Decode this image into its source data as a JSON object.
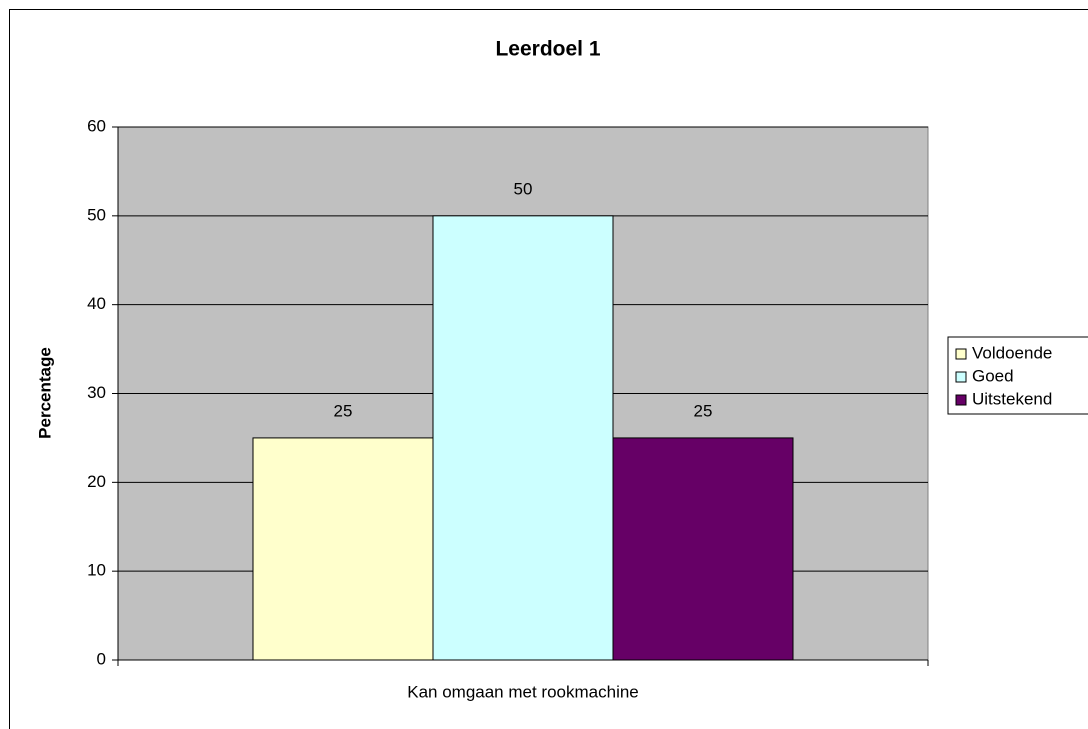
{
  "chart_data": {
    "type": "bar",
    "title": "Leerdoel 1",
    "y_label": "Percentage",
    "categories": [
      "Kan omgaan met rookmachine"
    ],
    "series": [
      {
        "name": "Voldoende",
        "color": "#FFFFCC",
        "values": [
          25
        ]
      },
      {
        "name": "Goed",
        "color": "#CCFFFF",
        "values": [
          50
        ]
      },
      {
        "name": "Uitstekend",
        "color": "#660066",
        "values": [
          25
        ]
      }
    ],
    "ylim": [
      0,
      60
    ],
    "yticks": [
      0,
      10,
      20,
      30,
      40,
      50,
      60
    ],
    "grid": true,
    "legend": "right",
    "plot_background": "#C0C0C0"
  }
}
